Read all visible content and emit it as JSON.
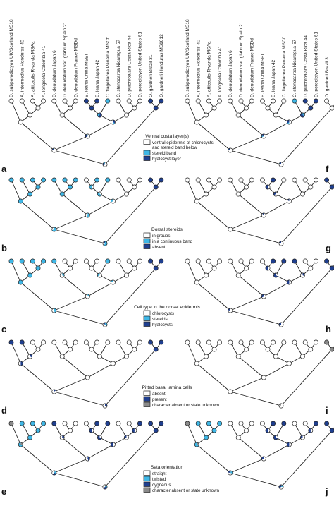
{
  "taxa": [
    "D. subporodictyon UK/Scotland MS18",
    "A. intermedius Honduras 40",
    "A. atticaulis Rwanda MSAa",
    "A. longiseta Colombia 41",
    "D. denudatum Japan 6",
    "D. denudatum var. glabrum Spain 21",
    "D. denudatum France MSDd",
    "B. leana China MSBI",
    "B. leana Japan 42",
    "C. flagellacea Panama MSCfl",
    "C. stenocarpa Nicaragua 57",
    "D. pulchroaiare Costa Rica 44",
    "D. porodictyon United States 61",
    "O. gardneri Brazil 31",
    "O. gardneri Honduras MS1012"
  ],
  "panel_letters": {
    "left": [
      "a",
      "b",
      "c",
      "d",
      "e"
    ],
    "right": [
      "f",
      "g",
      "h",
      "i",
      "j"
    ]
  },
  "colors": {
    "white": "#ffffff",
    "light": "#3fb7e6",
    "dark": "#1f3f8f",
    "gray": "#8a8a8a",
    "line": "#222222"
  },
  "legends": [
    {
      "title": "Ventral costa layer(s)",
      "items": [
        {
          "label": "ventral epidermis of chlorocysts and stereid band below",
          "color": "white"
        },
        {
          "label": "stereid band",
          "color": "light"
        },
        {
          "label": "hyalocyst layer",
          "color": "dark"
        }
      ]
    },
    {
      "title": "Dorsal stereids",
      "items": [
        {
          "label": "in groups",
          "color": "white"
        },
        {
          "label": "in a continuous band",
          "color": "light"
        },
        {
          "label": "absent",
          "color": "dark"
        }
      ]
    },
    {
      "title": "Cell type in the dorsal epidermis",
      "items": [
        {
          "label": "chlorocysts",
          "color": "white"
        },
        {
          "label": "stereids",
          "color": "light"
        },
        {
          "label": "hyalocysts",
          "color": "dark"
        }
      ]
    },
    {
      "title": "Pitted basal lamina cells",
      "items": [
        {
          "label": "absent",
          "color": "white"
        },
        {
          "label": "present",
          "color": "dark"
        },
        {
          "label": "character absent or state unknown",
          "color": "gray"
        }
      ]
    },
    {
      "title": "Seta orientation",
      "items": [
        {
          "label": "straight",
          "color": "white"
        },
        {
          "label": "twisted",
          "color": "light"
        },
        {
          "label": "cygneous",
          "color": "dark"
        },
        {
          "label": "character absent or state unknown",
          "color": "gray"
        }
      ]
    }
  ],
  "panels": [
    {
      "letter": "a",
      "tips": [
        "white",
        "white",
        "white",
        "white",
        "white",
        "white",
        "white",
        "dark",
        "dark",
        "light",
        "white",
        "white",
        "white",
        "dark",
        "dark"
      ]
    },
    {
      "letter": "b",
      "tips": [
        "light",
        "light",
        "light",
        "light",
        "light",
        "light",
        "light",
        "white",
        "light",
        "light",
        "white",
        "white",
        "white",
        "dark",
        "dark"
      ]
    },
    {
      "letter": "c",
      "tips": [
        "light",
        "light",
        "light",
        "light",
        "light",
        "white",
        "white",
        "white",
        "white",
        "light",
        "white",
        "white",
        "white",
        "dark",
        "dark"
      ]
    },
    {
      "letter": "d",
      "tips": [
        "dark",
        "dark",
        "white",
        "white",
        "white",
        "white",
        "white",
        "white",
        "white",
        "white",
        "white",
        "white",
        "white",
        "dark",
        "dark"
      ]
    },
    {
      "letter": "e",
      "tips": [
        "gray",
        "light",
        "light",
        "light",
        "dark",
        "white",
        "white",
        "white",
        "dark",
        "dark",
        "white",
        "white",
        "dark",
        "dark",
        "dark"
      ]
    },
    {
      "letter": "f",
      "tips": [
        "white",
        "white",
        "white",
        "white",
        "white",
        "white",
        "white",
        "white",
        "white",
        "white",
        "light",
        "dark",
        "dark",
        "white",
        "white"
      ]
    },
    {
      "letter": "g",
      "tips": [
        "white",
        "white",
        "white",
        "white",
        "white",
        "white",
        "white",
        "white",
        "dark",
        "white",
        "white",
        "white",
        "white",
        "dark",
        "dark"
      ]
    },
    {
      "letter": "h",
      "tips": [
        "white",
        "white",
        "white",
        "white",
        "white",
        "white",
        "white",
        "white",
        "dark",
        "dark",
        "dark",
        "white",
        "white",
        "dark",
        "dark"
      ]
    },
    {
      "letter": "i",
      "tips": [
        "white",
        "white",
        "white",
        "white",
        "white",
        "white",
        "white",
        "white",
        "white",
        "white",
        "white",
        "white",
        "white",
        "gray",
        "gray"
      ]
    },
    {
      "letter": "j",
      "tips": [
        "gray",
        "light",
        "light",
        "light",
        "white",
        "white",
        "white",
        "white",
        "dark",
        "dark",
        "white",
        "white",
        "dark",
        "dark",
        "dark"
      ]
    }
  ]
}
